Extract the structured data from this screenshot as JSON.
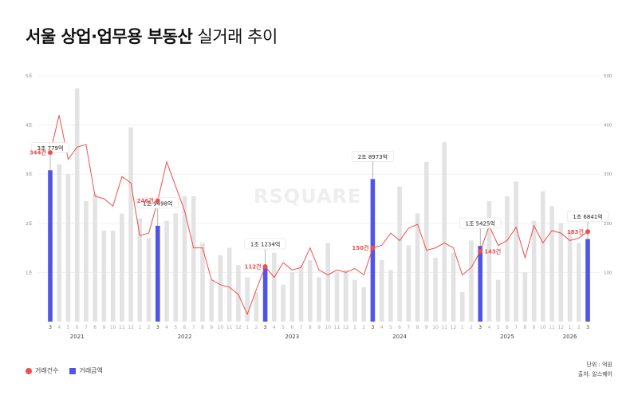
{
  "title": {
    "bold": "서울 상업·업무용 부동산",
    "light": "실거래 추이"
  },
  "watermark": "RSQUARE",
  "legend": {
    "count_label": "거래건수",
    "amount_label": "거래금액"
  },
  "notes": {
    "unit": "단위 : 억원",
    "source": "출처: 알스퀘어"
  },
  "colors": {
    "bar": "#e3e3e3",
    "highlight_bar": "#4f55e8",
    "line": "#f24e4e"
  },
  "chart_data": {
    "type": "bar+line",
    "title": "서울 상업·업무용 부동산 실거래 추이",
    "y_left_ticks": [
      "1조",
      "2조",
      "3조",
      "4조",
      "5조"
    ],
    "y_left_range_jo": [
      0,
      5
    ],
    "y_right_ticks": [
      "100",
      "200",
      "300",
      "400",
      "500"
    ],
    "y_right_range": [
      0,
      500
    ],
    "month_labels": [
      "3",
      "4",
      "5",
      "6",
      "7",
      "8",
      "9",
      "10",
      "11",
      "12",
      "1",
      "2",
      "3",
      "4",
      "5",
      "6",
      "7",
      "8",
      "9",
      "10",
      "11",
      "12",
      "1",
      "2",
      "3",
      "4",
      "5",
      "6",
      "7",
      "8",
      "9",
      "10",
      "11",
      "12",
      "1",
      "2",
      "3",
      "4",
      "5",
      "6",
      "7",
      "8",
      "9",
      "10",
      "11",
      "12",
      "1",
      "2",
      "3",
      "4",
      "5",
      "6",
      "7",
      "8",
      "9",
      "10",
      "11",
      "12",
      "1",
      "2",
      "3"
    ],
    "year_labels": [
      {
        "label": "2021",
        "index": 3
      },
      {
        "label": "2022",
        "index": 15
      },
      {
        "label": "2023",
        "index": 27
      },
      {
        "label": "2024",
        "index": 39
      },
      {
        "label": "2025",
        "index": 51
      },
      {
        "label": "2026",
        "index": 58
      }
    ],
    "series": [
      {
        "name": "거래금액",
        "unit": "조원",
        "values": [
          3.08,
          3.2,
          3.0,
          4.75,
          2.45,
          2.6,
          1.85,
          1.85,
          2.2,
          3.95,
          2.1,
          1.7,
          1.95,
          2.05,
          2.2,
          2.55,
          2.55,
          1.6,
          0.85,
          1.35,
          1.5,
          1.15,
          0.9,
          0.6,
          1.12,
          1.4,
          0.75,
          1.0,
          1.15,
          1.25,
          0.9,
          1.6,
          1.0,
          1.05,
          0.85,
          0.7,
          2.9,
          1.25,
          1.05,
          2.75,
          1.55,
          2.2,
          3.25,
          1.3,
          3.65,
          1.4,
          0.6,
          1.65,
          1.54,
          2.45,
          0.85,
          2.55,
          2.85,
          1.0,
          2.05,
          2.65,
          2.35,
          2.0,
          1.85,
          1.6,
          1.68
        ]
      },
      {
        "name": "거래건수",
        "unit": "건",
        "values": [
          344,
          420,
          330,
          355,
          360,
          255,
          250,
          235,
          295,
          282,
          175,
          180,
          246,
          325,
          275,
          225,
          150,
          150,
          85,
          75,
          70,
          55,
          15,
          65,
          112,
          90,
          120,
          105,
          110,
          150,
          105,
          95,
          105,
          100,
          108,
          95,
          150,
          155,
          180,
          165,
          190,
          198,
          145,
          150,
          160,
          150,
          95,
          110,
          143,
          195,
          155,
          165,
          192,
          130,
          195,
          160,
          185,
          180,
          165,
          170,
          183
        ]
      }
    ],
    "annotations": {
      "amount_labels": [
        {
          "index": 0,
          "text": "3조 779억"
        },
        {
          "index": 12,
          "text": "1조 9498억"
        },
        {
          "index": 24,
          "text": "1조 1234억"
        },
        {
          "index": 36,
          "text": "2조 8973억"
        },
        {
          "index": 48,
          "text": "1조 5425억"
        },
        {
          "index": 60,
          "text": "1조 6841억"
        }
      ],
      "count_labels": [
        {
          "index": 0,
          "text": "344건"
        },
        {
          "index": 12,
          "text": "246건"
        },
        {
          "index": 24,
          "text": "112건"
        },
        {
          "index": 36,
          "text": "150건"
        },
        {
          "index": 48,
          "text": "143건"
        },
        {
          "index": 60,
          "text": "183건"
        }
      ]
    }
  }
}
